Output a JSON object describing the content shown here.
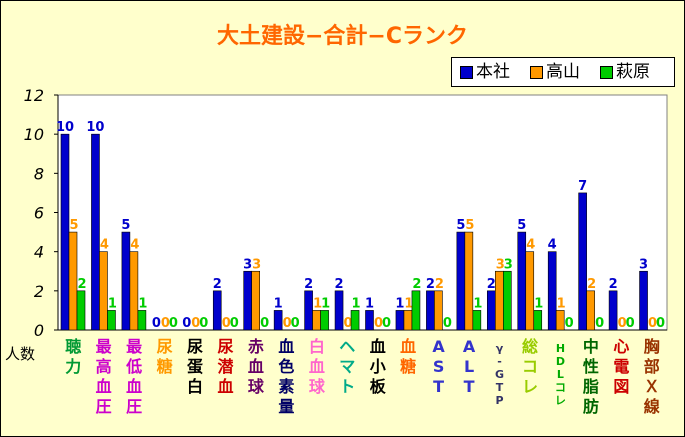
{
  "chart_data": {
    "type": "bar",
    "title": "大土建設−合計−Cランク",
    "ylabel": "人数",
    "ylim": [
      0,
      12
    ],
    "yticks": [
      "0",
      "2",
      "4",
      "6",
      "8",
      "10",
      "12"
    ],
    "legend_position": "top-right",
    "grid": false,
    "categories": [
      "聴力",
      "最高血圧",
      "最低血圧",
      "尿糖",
      "尿蛋白",
      "尿潜血",
      "赤血球",
      "血色素量",
      "白血球",
      "ヘマト",
      "血小板",
      "血糖",
      "AST",
      "ALT",
      "γ-GTP",
      "総コレ",
      "HDLコレ",
      "中性脂肪",
      "心電図",
      "胸部Ｘ線"
    ],
    "category_colors": [
      "#009933",
      "#cc00cc",
      "#cc00cc",
      "#ff9900",
      "#000000",
      "#cc0000",
      "#660066",
      "#000066",
      "#ff66cc",
      "#00aa88",
      "#000000",
      "#ff6600",
      "#3333cc",
      "#3333cc",
      "#333366",
      "#99cc00",
      "#00aa00",
      "#006600",
      "#cc0000",
      "#993300"
    ],
    "series": [
      {
        "name": "本社",
        "color": "#0000cc",
        "label_color": "#0000cc",
        "values": [
          10,
          10,
          5,
          0,
          0,
          2,
          3,
          1,
          2,
          2,
          1,
          1,
          2,
          5,
          2,
          5,
          4,
          7,
          2,
          3
        ]
      },
      {
        "name": "高山",
        "color": "#ff9900",
        "label_color": "#ff9900",
        "values": [
          5,
          4,
          4,
          0,
          0,
          0,
          3,
          0,
          1,
          0,
          0,
          1,
          2,
          5,
          3,
          4,
          1,
          2,
          0,
          0
        ]
      },
      {
        "name": "萩原",
        "color": "#00cc00",
        "label_color": "#00cc00",
        "values": [
          2,
          1,
          1,
          0,
          0,
          0,
          0,
          0,
          1,
          1,
          0,
          2,
          0,
          1,
          3,
          1,
          0,
          0,
          0,
          0
        ]
      }
    ]
  }
}
